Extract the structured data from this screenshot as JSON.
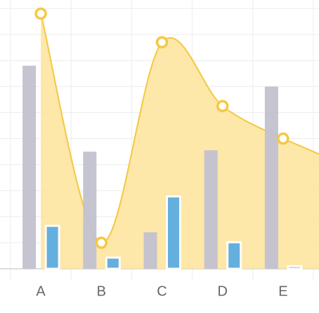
{
  "chart_data": {
    "type": "bar-area",
    "categories": [
      "A",
      "B",
      "C",
      "D",
      "E"
    ],
    "series": [
      {
        "type": "bar",
        "color": "#c2c1cf",
        "values": [
          7.8,
          4.5,
          1.4,
          4.55,
          7.0
        ]
      },
      {
        "type": "bar",
        "color": "#5dade2",
        "values": [
          1.65,
          0.43,
          2.78,
          1.02,
          0.1
        ]
      },
      {
        "type": "area",
        "color": "#f5c842",
        "fill": "#fde4a0",
        "values": [
          9.8,
          1.0,
          8.7,
          6.25,
          5.0
        ]
      }
    ],
    "ylim": [
      0,
      10
    ],
    "yticks": [
      0,
      1,
      2,
      3,
      4,
      5,
      6,
      7,
      8,
      9,
      10
    ],
    "grid": true
  }
}
